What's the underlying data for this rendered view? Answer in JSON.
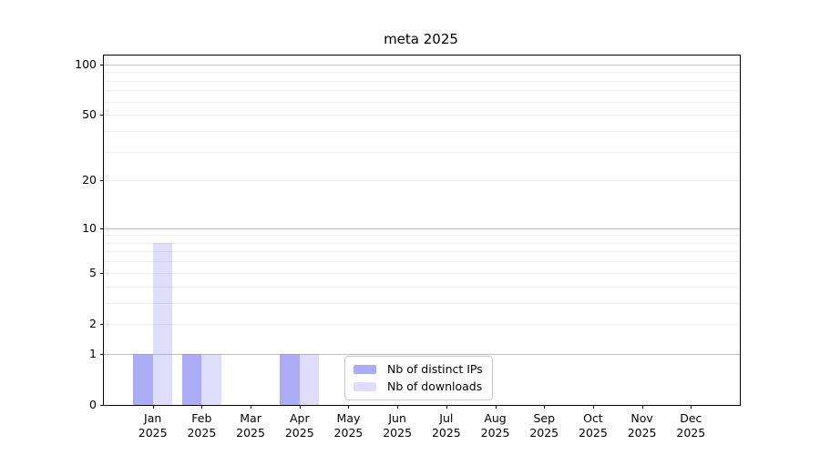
{
  "chart_data": {
    "type": "bar",
    "title": "meta 2025",
    "categories": [
      "Jan\n2025",
      "Feb\n2025",
      "Mar\n2025",
      "Apr\n2025",
      "May\n2025",
      "Jun\n2025",
      "Jul\n2025",
      "Aug\n2025",
      "Sep\n2025",
      "Oct\n2025",
      "Nov\n2025",
      "Dec\n2025"
    ],
    "series": [
      {
        "name": "Nb of distinct IPs",
        "color": "rgba(140,140,242,0.72)",
        "values": [
          1,
          1,
          0,
          1,
          0,
          0,
          0,
          0,
          0,
          0,
          0,
          0
        ]
      },
      {
        "name": "Nb of downloads",
        "color": "rgba(140,140,242,0.29)",
        "values": [
          8,
          1,
          0,
          1,
          0,
          0,
          0,
          0,
          0,
          0,
          0,
          0
        ]
      }
    ],
    "xlabel": "",
    "ylabel": "",
    "y_axis": {
      "scale": "log1p",
      "min": 0,
      "max": 113,
      "tick_values": [
        0,
        1,
        2,
        5,
        10,
        20,
        50,
        100
      ],
      "tick_labels": [
        "0",
        "1",
        "2",
        "5",
        "10",
        "20",
        "50",
        "100"
      ],
      "major_gridlines": [
        1,
        10,
        100
      ],
      "minor_gridlines": [
        2,
        3,
        4,
        5,
        6,
        7,
        8,
        9,
        20,
        30,
        40,
        50,
        60,
        70,
        80,
        90
      ]
    },
    "grid": true,
    "legend_position": "inside-bottom-left",
    "colors": {
      "bar_base": "#8c8cf2",
      "major_grid": "#c0c0c0",
      "minor_grid": "#ededed",
      "axis": "#000000",
      "legend_border": "#c8c8c8",
      "background": "#ffffff",
      "text": "#000000"
    }
  }
}
